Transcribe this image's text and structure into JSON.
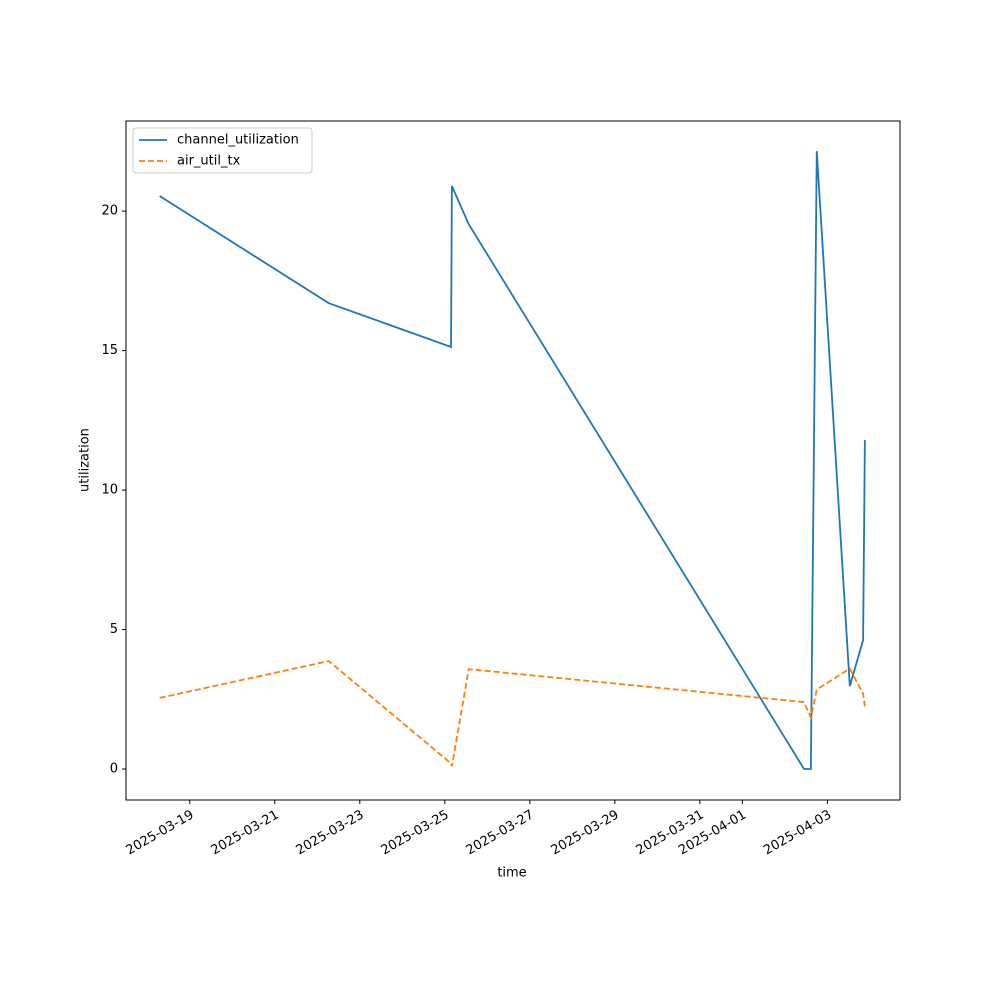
{
  "chart_data": {
    "type": "line",
    "xlabel": "time",
    "ylabel": "utilization",
    "x": [
      "2025-03-18T07:00",
      "2025-03-22T06:30",
      "2025-03-25T03:30",
      "2025-03-25T04:00",
      "2025-03-25T13:30",
      "2025-04-02T10:50",
      "2025-04-02T14:40",
      "2025-04-02T18:00",
      "2025-04-03T12:40",
      "2025-04-03T20:10",
      "2025-04-03T21:10"
    ],
    "series": [
      {
        "name": "channel_utilization",
        "color": "#1f77b4",
        "linestyle": "solid",
        "values": [
          20.54,
          16.7,
          15.13,
          20.9,
          19.53,
          0,
          0,
          22.15,
          2.97,
          4.62,
          11.79
        ]
      },
      {
        "name": "air_util_tx",
        "color": "#ff7f0e",
        "linestyle": "dashed",
        "values": [
          2.55,
          3.87,
          0.2,
          0.1,
          3.58,
          2.4,
          1.85,
          2.85,
          3.6,
          2.7,
          2.25
        ]
      }
    ],
    "xlim": [
      "2025-03-17T12:00",
      "2025-04-04T17:00"
    ],
    "xticks": [
      "2025-03-19",
      "2025-03-21",
      "2025-03-23",
      "2025-03-25",
      "2025-03-27",
      "2025-03-29",
      "2025-03-31",
      "2025-04-01",
      "2025-04-03"
    ],
    "ylim": [
      -1.11,
      23.23
    ],
    "yticks": [
      0,
      5,
      10,
      15,
      20
    ],
    "grid": false,
    "legend": "upper left"
  }
}
